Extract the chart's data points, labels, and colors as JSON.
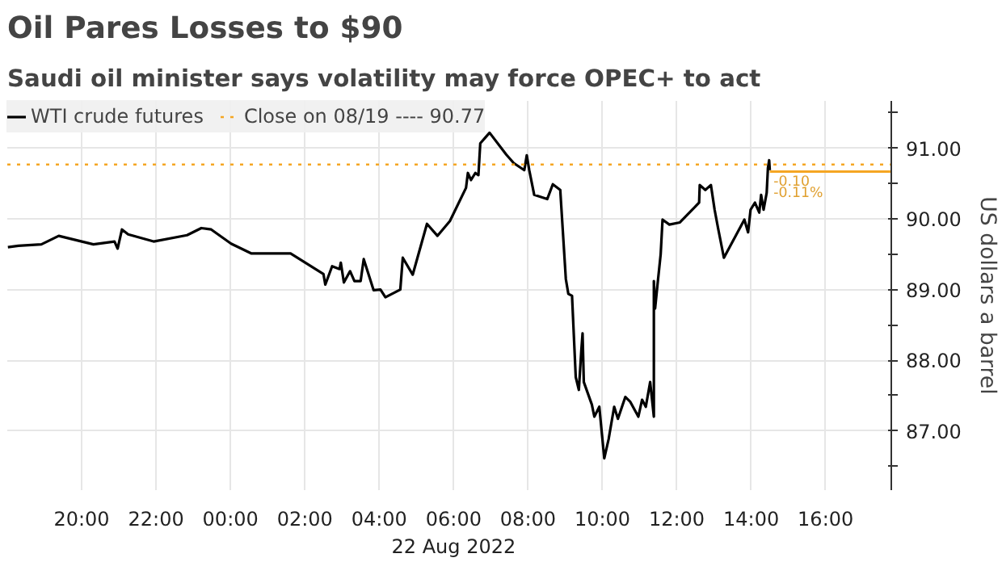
{
  "chart_data": {
    "type": "line",
    "title": "Oil Pares Losses to $90",
    "subtitle": "Saudi oil minister says volatility may force OPEC+ to act",
    "ylabel": "US dollars a barrel",
    "xlim": [
      "2022-08-21T18:00",
      "2022-08-22T17:46"
    ],
    "ylim": [
      86.16,
      91.67
    ],
    "xticks": [
      {
        "value": "2022-08-21T20:00",
        "label": "20:00"
      },
      {
        "value": "2022-08-21T22:00",
        "label": "22:00"
      },
      {
        "value": "2022-08-22T00:00",
        "label": "00:00"
      },
      {
        "value": "2022-08-22T02:00",
        "label": "02:00"
      },
      {
        "value": "2022-08-22T04:00",
        "label": "04:00"
      },
      {
        "value": "2022-08-22T06:00",
        "label": "06:00\n22 Aug 2022"
      },
      {
        "value": "2022-08-22T08:00",
        "label": "08:00"
      },
      {
        "value": "2022-08-22T10:00",
        "label": "10:00"
      },
      {
        "value": "2022-08-22T12:00",
        "label": "12:00"
      },
      {
        "value": "2022-08-22T14:00",
        "label": "14:00"
      },
      {
        "value": "2022-08-22T16:00",
        "label": "16:00"
      }
    ],
    "yticks": [
      {
        "value": 86.5,
        "label": null
      },
      {
        "value": 87,
        "label": "87.00"
      },
      {
        "value": 87.5,
        "label": null
      },
      {
        "value": 88,
        "label": "88.00"
      },
      {
        "value": 88.5,
        "label": null
      },
      {
        "value": 89,
        "label": "89.00"
      },
      {
        "value": 89.5,
        "label": null
      },
      {
        "value": 90,
        "label": "90.00"
      },
      {
        "value": 90.5,
        "label": null
      },
      {
        "value": 91,
        "label": "91.00"
      },
      {
        "value": 91.5,
        "label": null
      }
    ],
    "grid": true,
    "legend": "top left",
    "series": [
      {
        "name": "WTI crude futures",
        "color": "#000000",
        "x": [
          "2022-08-21T18:01",
          "2022-08-21T18:18",
          "2022-08-21T18:55",
          "2022-08-21T19:23",
          "2022-08-21T20:19",
          "2022-08-21T20:53",
          "2022-08-21T20:58",
          "2022-08-21T21:05",
          "2022-08-21T21:15",
          "2022-08-21T21:56",
          "2022-08-21T22:50",
          "2022-08-21T23:13",
          "2022-08-21T23:29",
          "2022-08-22T00:01",
          "2022-08-22T00:34",
          "2022-08-22T01:37",
          "2022-08-22T02:30",
          "2022-08-22T02:33",
          "2022-08-22T02:44",
          "2022-08-22T02:56",
          "2022-08-22T02:58",
          "2022-08-22T03:03",
          "2022-08-22T03:13",
          "2022-08-22T03:20",
          "2022-08-22T03:30",
          "2022-08-22T03:35",
          "2022-08-22T03:51",
          "2022-08-22T04:02",
          "2022-08-22T04:10",
          "2022-08-22T04:34",
          "2022-08-22T04:38",
          "2022-08-22T04:54",
          "2022-08-22T05:17",
          "2022-08-22T05:34",
          "2022-08-22T05:54",
          "2022-08-22T06:20",
          "2022-08-22T06:23",
          "2022-08-22T06:28",
          "2022-08-22T06:35",
          "2022-08-22T06:40",
          "2022-08-22T06:43",
          "2022-08-22T06:50",
          "2022-08-22T06:58",
          "2022-08-22T07:25",
          "2022-08-22T07:37",
          "2022-08-22T07:54",
          "2022-08-22T07:58",
          "2022-08-22T08:02",
          "2022-08-22T08:10",
          "2022-08-22T08:31",
          "2022-08-22T08:40",
          "2022-08-22T08:52",
          "2022-08-22T09:01",
          "2022-08-22T09:05",
          "2022-08-22T09:11",
          "2022-08-22T09:17",
          "2022-08-22T09:22",
          "2022-08-22T09:26",
          "2022-08-22T09:28",
          "2022-08-22T09:30",
          "2022-08-22T09:43",
          "2022-08-22T09:47",
          "2022-08-22T09:55",
          "2022-08-22T10:03",
          "2022-08-22T10:10",
          "2022-08-22T10:19",
          "2022-08-22T10:25",
          "2022-08-22T10:37",
          "2022-08-22T10:45",
          "2022-08-22T10:58",
          "2022-08-22T11:04",
          "2022-08-22T11:10",
          "2022-08-22T11:17",
          "2022-08-22T11:23",
          "2022-08-22T11:23",
          "2022-08-22T11:25",
          "2022-08-22T11:29",
          "2022-08-22T11:34",
          "2022-08-22T11:37",
          "2022-08-22T11:48",
          "2022-08-22T12:05",
          "2022-08-22T12:36",
          "2022-08-22T12:37",
          "2022-08-22T12:46",
          "2022-08-22T12:55",
          "2022-08-22T13:01",
          "2022-08-22T13:07",
          "2022-08-22T13:16",
          "2022-08-22T13:49",
          "2022-08-22T13:55",
          "2022-08-22T13:59",
          "2022-08-22T14:06",
          "2022-08-22T14:13",
          "2022-08-22T14:16",
          "2022-08-22T14:20",
          "2022-08-22T14:25",
          "2022-08-22T14:27",
          "2022-08-22T14:29",
          "2022-08-22T14:30"
        ],
        "values": [
          89.6,
          89.62,
          89.64,
          89.76,
          89.64,
          89.68,
          89.58,
          89.85,
          89.78,
          89.68,
          89.77,
          89.87,
          89.85,
          89.65,
          89.51,
          89.51,
          89.22,
          89.07,
          89.33,
          89.29,
          89.38,
          89.1,
          89.26,
          89.12,
          89.12,
          89.43,
          88.99,
          89.0,
          88.89,
          89.0,
          89.45,
          89.21,
          89.93,
          89.76,
          89.97,
          90.44,
          90.65,
          90.55,
          90.65,
          90.62,
          91.07,
          91.14,
          91.22,
          90.91,
          90.79,
          90.69,
          90.9,
          90.69,
          90.34,
          90.28,
          90.49,
          90.41,
          89.15,
          88.94,
          88.91,
          87.76,
          87.58,
          88.14,
          88.38,
          87.69,
          87.37,
          87.2,
          87.34,
          86.61,
          86.88,
          87.34,
          87.17,
          87.48,
          87.41,
          87.2,
          87.44,
          87.34,
          87.69,
          87.2,
          89.12,
          88.73,
          89.08,
          89.5,
          89.99,
          89.92,
          89.95,
          90.23,
          90.48,
          90.41,
          90.48,
          90.13,
          89.85,
          89.45,
          89.99,
          89.81,
          90.13,
          90.23,
          90.09,
          90.34,
          90.13,
          90.37,
          90.72,
          90.83,
          90.69
        ]
      },
      {
        "color": "#f5a623",
        "x": [
          "2022-08-22T14:30",
          "2022-08-22T17:46"
        ],
        "values": [
          90.67,
          90.67
        ]
      }
    ],
    "ref_lines": [
      {
        "axis": "y",
        "value": 90.77,
        "label": "Close on 08/19 ---- 90.77",
        "color": "#f5a623",
        "line_style": "dotted"
      }
    ],
    "annotations": [
      {
        "text": "-0.10",
        "x": "2022-08-22T14:36",
        "y": 90.55
      },
      {
        "text": "-0.11%",
        "x": "2022-08-22T14:36",
        "y": 90.36
      }
    ]
  }
}
